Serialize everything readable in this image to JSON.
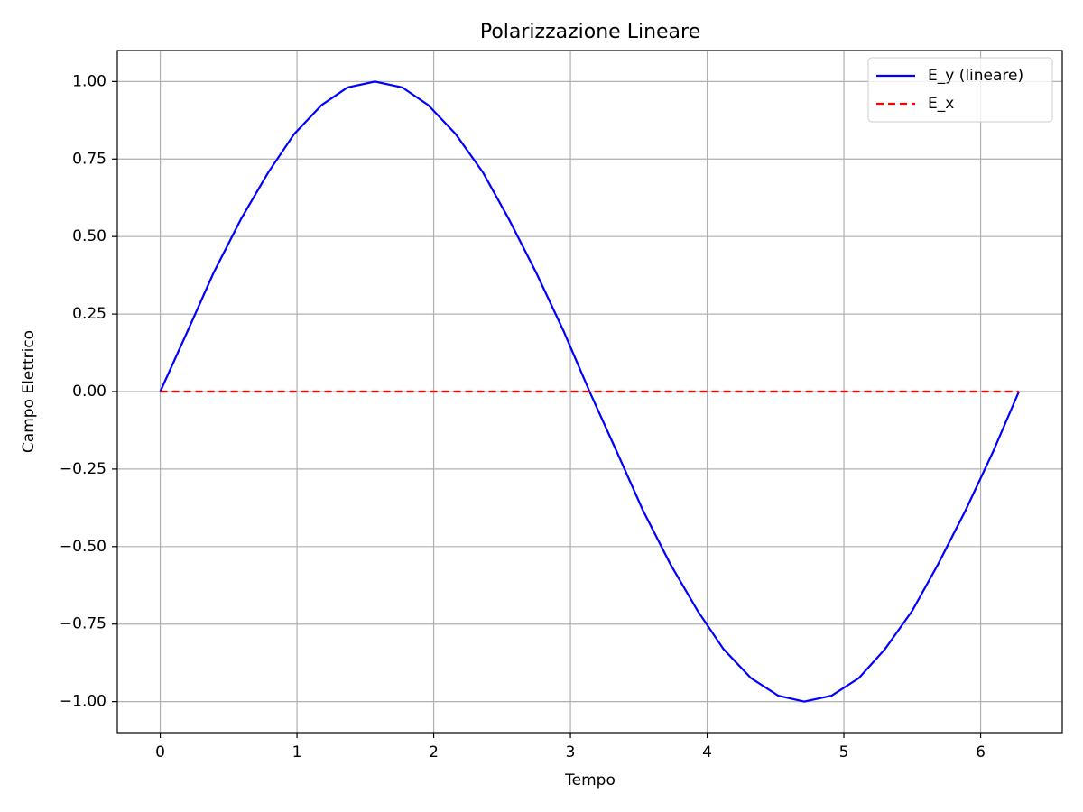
{
  "chart_data": {
    "type": "line",
    "title": "Polarizzazione Lineare",
    "x_label": "Tempo",
    "y_label": "Campo Elettrico",
    "x": [
      0.0,
      0.2,
      0.39,
      0.59,
      0.79,
      0.98,
      1.18,
      1.37,
      1.57,
      1.77,
      1.96,
      2.16,
      2.36,
      2.55,
      2.75,
      2.95,
      3.14,
      3.34,
      3.53,
      3.73,
      3.93,
      4.12,
      4.32,
      4.52,
      4.71,
      4.91,
      5.11,
      5.3,
      5.5,
      5.69,
      5.89,
      6.09,
      6.28
    ],
    "series": [
      {
        "name": "E_y (lineare)",
        "color": "#0000ff",
        "dash": false,
        "values": [
          0,
          0.195,
          0.383,
          0.556,
          0.707,
          0.831,
          0.924,
          0.981,
          1.0,
          0.981,
          0.924,
          0.831,
          0.707,
          0.556,
          0.383,
          0.195,
          0,
          -0.195,
          -0.383,
          -0.556,
          -0.707,
          -0.831,
          -0.924,
          -0.981,
          -1.0,
          -0.981,
          -0.924,
          -0.831,
          -0.707,
          -0.556,
          -0.383,
          -0.195,
          0
        ]
      },
      {
        "name": "E_x",
        "color": "#ff0000",
        "dash": true,
        "values": [
          0,
          0,
          0,
          0,
          0,
          0,
          0,
          0,
          0,
          0,
          0,
          0,
          0,
          0,
          0,
          0,
          0,
          0,
          0,
          0,
          0,
          0,
          0,
          0,
          0,
          0,
          0,
          0,
          0,
          0,
          0,
          0,
          0
        ]
      }
    ],
    "xlim": [
      -0.314,
      6.597
    ],
    "ylim": [
      -1.1,
      1.1
    ],
    "xticks": [
      0,
      1,
      2,
      3,
      4,
      5,
      6
    ],
    "yticks": [
      {
        "value": -1,
        "label": "−1.00"
      },
      {
        "value": -0.75,
        "label": "−0.75"
      },
      {
        "value": -0.5,
        "label": "−0.50"
      },
      {
        "value": -0.25,
        "label": "−0.25"
      },
      {
        "value": 0,
        "label": "0.00"
      },
      {
        "value": 0.25,
        "label": "0.25"
      },
      {
        "value": 0.5,
        "label": "0.50"
      },
      {
        "value": 0.75,
        "label": "0.75"
      },
      {
        "value": 1,
        "label": "1.00"
      }
    ],
    "grid": true,
    "legend": "upper-right"
  }
}
